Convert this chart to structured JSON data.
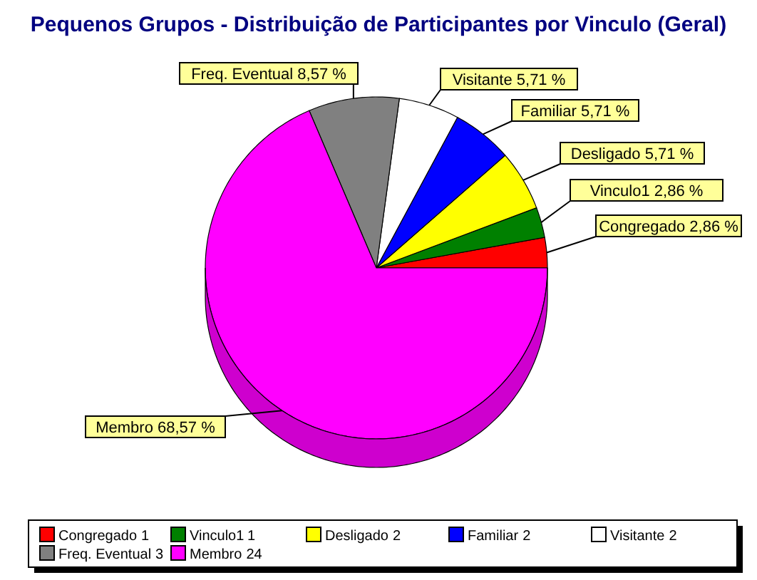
{
  "chart_data": {
    "type": "pie",
    "title": "Pequenos Grupos - Distribuição de Participantes por Vinculo (Geral)",
    "categories": [
      "Congregado",
      "Vinculo1",
      "Desligado",
      "Familiar",
      "Visitante",
      "Freq. Eventual",
      "Membro"
    ],
    "values": [
      2.86,
      2.86,
      5.71,
      5.71,
      5.71,
      8.57,
      68.57
    ],
    "value_labels": [
      "2,86 %",
      "2,86 %",
      "5,71 %",
      "5,71 %",
      "5,71 %",
      "8,57 %",
      "68,57 %"
    ],
    "annotations": [
      "1",
      "1",
      "2",
      "2",
      "2",
      "3",
      "24"
    ],
    "colors": [
      "#ff0000",
      "#008000",
      "#ffff00",
      "#0000ff",
      "#ffffff",
      "#808080",
      "#ff00ff"
    ],
    "legend": "bottom"
  }
}
